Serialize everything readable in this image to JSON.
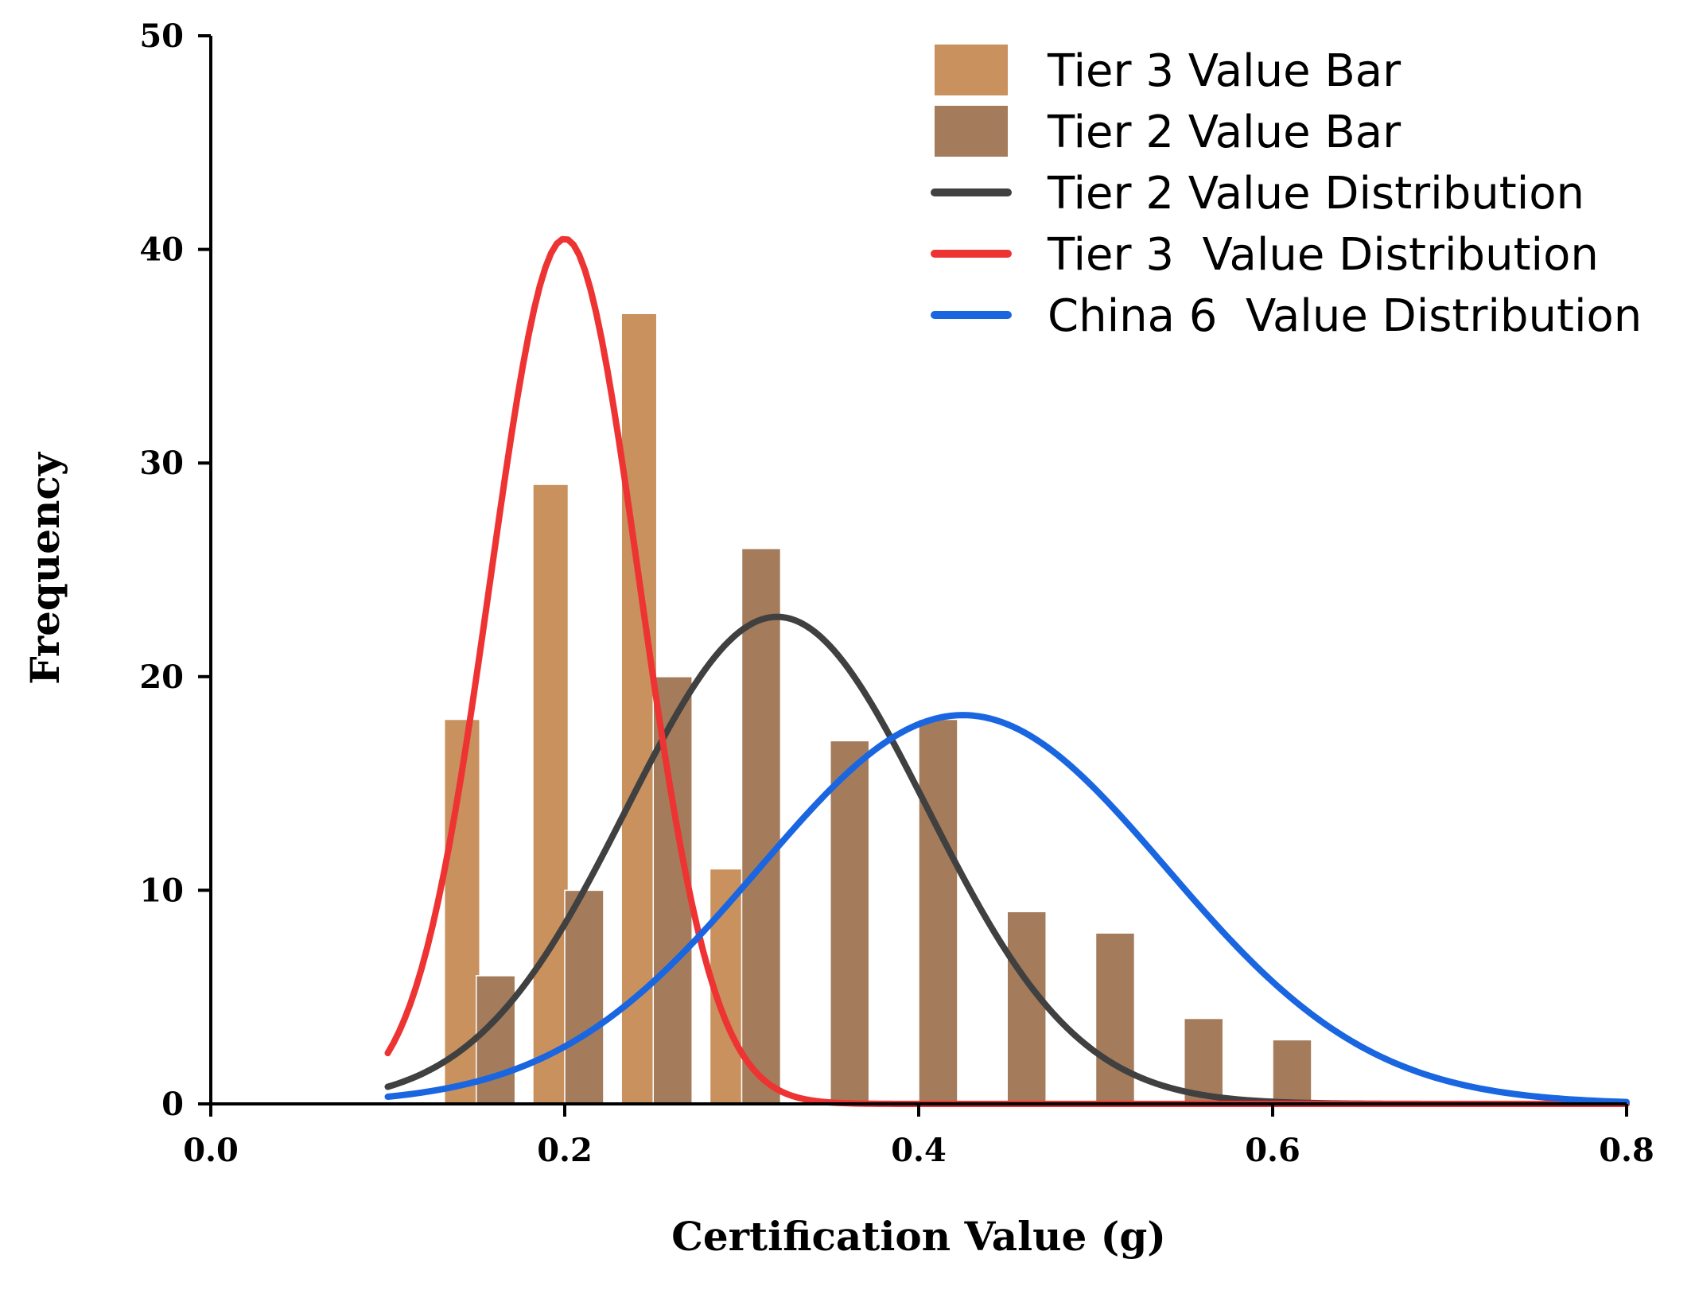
{
  "chart_data": {
    "type": "bar",
    "title": "",
    "xlabel": "Certification Value (g)",
    "ylabel": "Frequency",
    "xlim": [
      0.0,
      0.8
    ],
    "ylim": [
      0,
      50
    ],
    "x_ticks": [
      "0.0",
      "0.2",
      "0.4",
      "0.6",
      "0.8"
    ],
    "y_ticks": [
      "0",
      "10",
      "20",
      "30",
      "40",
      "50"
    ],
    "grid": false,
    "legend_position": "top-right",
    "bar_series": [
      {
        "name": "Tier 3 Value Bar",
        "color": "#C8915E",
        "bins": [
          {
            "x0": 0.132,
            "x1": 0.152,
            "value": 18
          },
          {
            "x0": 0.182,
            "x1": 0.202,
            "value": 29
          },
          {
            "x0": 0.232,
            "x1": 0.252,
            "value": 37
          },
          {
            "x0": 0.282,
            "x1": 0.302,
            "value": 11
          }
        ]
      },
      {
        "name": "Tier 2 Value Bar",
        "color": "#A47C5C",
        "bins": [
          {
            "x0": 0.15,
            "x1": 0.172,
            "value": 6
          },
          {
            "x0": 0.2,
            "x1": 0.222,
            "value": 10
          },
          {
            "x0": 0.25,
            "x1": 0.272,
            "value": 20
          },
          {
            "x0": 0.3,
            "x1": 0.322,
            "value": 26
          },
          {
            "x0": 0.35,
            "x1": 0.372,
            "value": 17
          },
          {
            "x0": 0.4,
            "x1": 0.422,
            "value": 18
          },
          {
            "x0": 0.45,
            "x1": 0.472,
            "value": 9
          },
          {
            "x0": 0.5,
            "x1": 0.522,
            "value": 8
          },
          {
            "x0": 0.55,
            "x1": 0.572,
            "value": 4
          },
          {
            "x0": 0.6,
            "x1": 0.622,
            "value": 3
          }
        ]
      }
    ],
    "curve_series": [
      {
        "name": "Tier 2 Value Distribution",
        "color": "#404040",
        "x_range": [
          0.1,
          0.69
        ],
        "mean": 0.32,
        "sd": 0.085,
        "peak": 22.8
      },
      {
        "name": "Tier 3  Value Distribution",
        "color": "#EE3333",
        "x_range": [
          0.1,
          0.8
        ],
        "mean": 0.2,
        "sd": 0.042,
        "peak": 40.5
      },
      {
        "name": "China 6  Value Distribution",
        "color": "#1A66E0",
        "x_range": [
          0.1,
          0.8
        ],
        "mean": 0.425,
        "sd": 0.115,
        "peak": 18.2
      }
    ]
  }
}
